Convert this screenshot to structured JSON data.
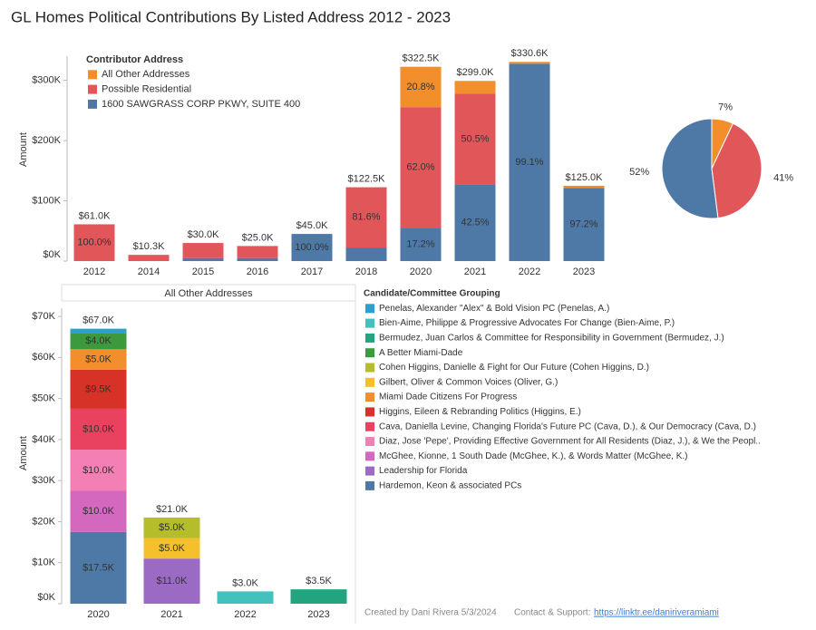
{
  "title": "GL Homes Political Contributions By Listed Address 2012 - 2023",
  "chart_data": [
    {
      "type": "bar",
      "stacked": true,
      "ylabel": "Amount",
      "legend_title": "Contributor Address",
      "categories": [
        "2012",
        "2014",
        "2015",
        "2016",
        "2017",
        "2018",
        "2020",
        "2021",
        "2022",
        "2023"
      ],
      "ylim": [
        0,
        340000
      ],
      "yticks": [
        {
          "value": 0,
          "label": "$0K"
        },
        {
          "value": 100000,
          "label": "$100K"
        },
        {
          "value": 200000,
          "label": "$200K"
        },
        {
          "value": 300000,
          "label": "$300K"
        }
      ],
      "grid": false,
      "series": [
        {
          "name": "1600 SAWGRASS CORP PKWY, SUITE 400",
          "color": "#4e79a7",
          "values": [
            null,
            null,
            5000,
            5000,
            45000,
            22500,
            55500,
            127000,
            327600,
            121500
          ],
          "percent_labels": [
            null,
            null,
            null,
            null,
            "100.0%",
            null,
            "17.2%",
            "42.5%",
            "99.1%",
            "97.2%"
          ]
        },
        {
          "name": "Possible Residential",
          "color": "#e15759",
          "values": [
            61000,
            10300,
            25000,
            20000,
            null,
            100000,
            200000,
            151000,
            null,
            null
          ],
          "percent_labels": [
            "100.0%",
            null,
            null,
            null,
            null,
            "81.6%",
            "62.0%",
            "50.5%",
            null,
            null
          ]
        },
        {
          "name": "All Other Addresses",
          "color": "#f28e2b",
          "values": [
            null,
            null,
            null,
            null,
            null,
            null,
            67000,
            21000,
            3000,
            3500
          ],
          "percent_labels": [
            null,
            null,
            null,
            null,
            null,
            null,
            "20.8%",
            null,
            null,
            null
          ]
        }
      ],
      "total_labels": [
        "$61.0K",
        "$10.3K",
        "$30.0K",
        "$25.0K",
        "$45.0K",
        "$122.5K",
        "$322.5K",
        "$299.0K",
        "$330.6K",
        "$125.0K"
      ]
    },
    {
      "type": "pie",
      "values": [
        7,
        41,
        52
      ],
      "value_labels": [
        "7%",
        "41%",
        "52%"
      ],
      "colors": [
        "#f28e2b",
        "#e15759",
        "#4e79a7"
      ]
    },
    {
      "type": "bar",
      "stacked": true,
      "header": "All Other Addresses",
      "ylabel": "Amount",
      "legend_title": "Candidate/Committee Grouping",
      "categories": [
        "2020",
        "2021",
        "2022",
        "2023"
      ],
      "ylim": [
        0,
        72000
      ],
      "yticks": [
        {
          "value": 0,
          "label": "$0K"
        },
        {
          "value": 10000,
          "label": "$10K"
        },
        {
          "value": 20000,
          "label": "$20K"
        },
        {
          "value": 30000,
          "label": "$30K"
        },
        {
          "value": 40000,
          "label": "$40K"
        },
        {
          "value": 50000,
          "label": "$50K"
        },
        {
          "value": 60000,
          "label": "$60K"
        },
        {
          "value": 70000,
          "label": "$70K"
        }
      ],
      "grid": false,
      "series": [
        {
          "name": "Hardemon, Keon & associated PCs",
          "color": "#4e79a7",
          "values": [
            17500,
            null,
            null,
            null
          ],
          "value_labels": [
            "$17.5K",
            null,
            null,
            null
          ]
        },
        {
          "name": "Leadership for Florida",
          "color": "#9a6ac4",
          "values": [
            null,
            11000,
            null,
            null
          ],
          "value_labels": [
            null,
            "$11.0K",
            null,
            null
          ]
        },
        {
          "name": "McGhee, Kionne, 1 South Dade (McGhee, K.), & Words Matter (McGhee, K.)",
          "color": "#d368be",
          "values": [
            10000,
            null,
            null,
            null
          ],
          "value_labels": [
            "$10.0K",
            null,
            null,
            null
          ]
        },
        {
          "name": "Diaz, Jose 'Pepe', Providing Effective Government for All Residents (Diaz, J.), & We the Peopl..",
          "color": "#f47fb4",
          "values": [
            10000,
            null,
            null,
            null
          ],
          "value_labels": [
            "$10.0K",
            null,
            null,
            null
          ]
        },
        {
          "name": "Cava, Daniella Levine, Changing Florida's Future PC (Cava, D.), & Our Democracy (Cava, D.)",
          "color": "#e8425e",
          "values": [
            10000,
            null,
            null,
            null
          ],
          "value_labels": [
            "$10.0K",
            null,
            null,
            null
          ]
        },
        {
          "name": "Higgins, Eileen & Rebranding Politics (Higgins, E.)",
          "color": "#d63227",
          "values": [
            9500,
            null,
            null,
            null
          ],
          "value_labels": [
            "$9.5K",
            null,
            null,
            null
          ]
        },
        {
          "name": "Miami Dade Citizens For Progress",
          "color": "#f28e2b",
          "values": [
            5000,
            null,
            null,
            null
          ],
          "value_labels": [
            "$5.0K",
            null,
            null,
            null
          ]
        },
        {
          "name": "Gilbert, Oliver & Common Voices (Oliver, G.)",
          "color": "#f5c02c",
          "values": [
            null,
            5000,
            null,
            null
          ],
          "value_labels": [
            null,
            "$5.0K",
            null,
            null
          ]
        },
        {
          "name": "Cohen Higgins, Danielle & Fight for Our Future (Cohen Higgins, D.)",
          "color": "#b5bd2b",
          "values": [
            null,
            5000,
            null,
            null
          ],
          "value_labels": [
            null,
            "$5.0K",
            null,
            null
          ]
        },
        {
          "name": "A Better Miami-Dade",
          "color": "#3c9a3d",
          "values": [
            4000,
            null,
            null,
            null
          ],
          "value_labels": [
            "$4.0K",
            null,
            null,
            null
          ]
        },
        {
          "name": "Bermudez, Juan Carlos & Committee for Responsibility in Government (Bermudez, J.)",
          "color": "#22a480",
          "values": [
            null,
            null,
            null,
            3500
          ]
        },
        {
          "name": "Bien-Aime, Philippe & Progressive Advocates For Change (Bien-Aime, P.)",
          "color": "#42c1bf",
          "values": [
            null,
            null,
            3000,
            null
          ]
        },
        {
          "name": "Penelas, Alexander \"Alex\" & Bold Vision PC (Penelas, A.)",
          "color": "#2a9fd0",
          "values": [
            1000,
            null,
            null,
            null
          ]
        }
      ],
      "total_labels": [
        "$67.0K",
        "$21.0K",
        "$3.0K",
        "$3.5K"
      ]
    }
  ],
  "footer": {
    "credit": "Created by Dani Rivera 5/3/2024",
    "contact": "Contact & Support:",
    "link": "https://linktr.ee/daniriveramiami"
  }
}
